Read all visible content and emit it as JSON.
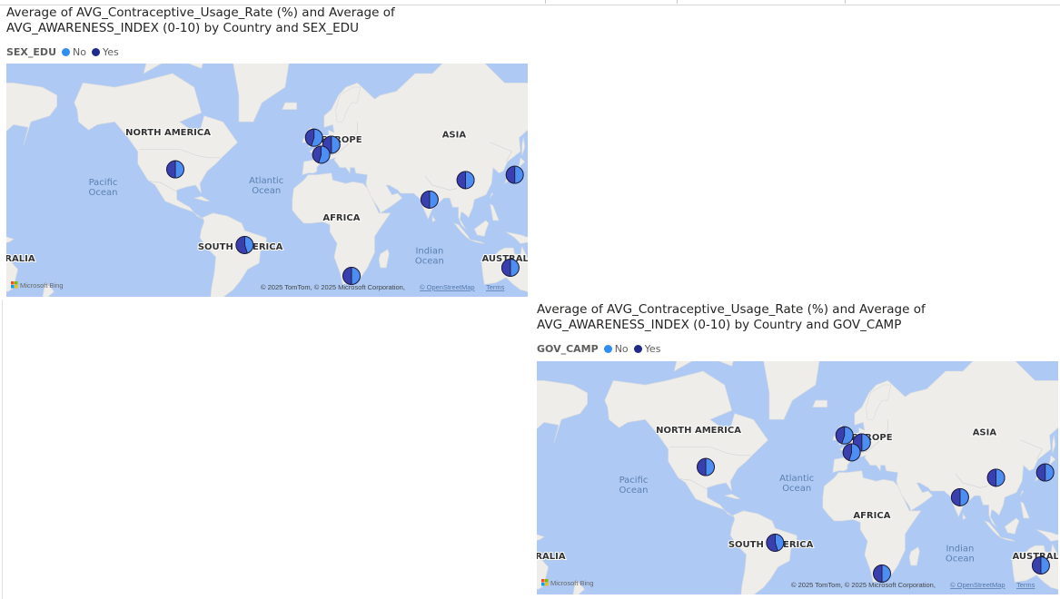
{
  "colors": {
    "no": "#4d8ef2",
    "yes": "#3a3fb0",
    "ocean": "#aecaf4",
    "land": "#eeedea"
  },
  "visuals": [
    {
      "title": "Average of AVG_Contraceptive_Usage_Rate (%) and Average of\nAVG_AWARENESS_INDEX (0-10) by Country and SEX_EDU",
      "legend_title": "SEX_EDU",
      "legend_items": [
        {
          "label": "No",
          "color": "#4d8ef2"
        },
        {
          "label": "Yes",
          "color": "#1f2a8c"
        }
      ],
      "map_labels": {
        "north_america": "NORTH AMERICA",
        "europe": "EUROPE",
        "asia": "ASIA",
        "africa": "AFRICA",
        "south_america": "SOUTH AMERICA",
        "australia_left": "RALIA",
        "australia": "AUSTRALIA",
        "pacific_left": "Pacific\nOcean",
        "atlantic": "Atlantic\nOcean",
        "indian": "Indian\nOcean",
        "pacific_right": "Pacific\nOcean"
      },
      "attribution": "© 2025 TomTom, © 2025 Microsoft Corporation,",
      "attribution_link": "© OpenStreetMap",
      "terms": "Terms",
      "bing": "Microsoft Bing",
      "pies": [
        {
          "country": "United States",
          "lon": -98,
          "lat": 39,
          "no": 0.5,
          "yes": 0.5
        },
        {
          "country": "United Kingdom",
          "lon": -2,
          "lat": 54,
          "no": 0.55,
          "yes": 0.45
        },
        {
          "country": "Germany",
          "lon": 10,
          "lat": 51,
          "no": 0.5,
          "yes": 0.5
        },
        {
          "country": "France",
          "lon": 3,
          "lat": 46.5,
          "no": 0.55,
          "yes": 0.45
        },
        {
          "country": "Brazil",
          "lon": -50,
          "lat": -10,
          "no": 0.45,
          "yes": 0.55
        },
        {
          "country": "South Africa",
          "lon": 24,
          "lat": -30,
          "no": 0.5,
          "yes": 0.5
        },
        {
          "country": "India",
          "lon": 78,
          "lat": 21,
          "no": 0.5,
          "yes": 0.5
        },
        {
          "country": "China",
          "lon": 103,
          "lat": 33,
          "no": 0.5,
          "yes": 0.5
        },
        {
          "country": "Japan",
          "lon": 137,
          "lat": 36,
          "no": 0.5,
          "yes": 0.5
        },
        {
          "country": "Australia",
          "lon": 134,
          "lat": -25,
          "no": 0.5,
          "yes": 0.5
        }
      ]
    },
    {
      "title": "Average of AVG_Contraceptive_Usage_Rate (%) and Average of\nAVG_AWARENESS_INDEX (0-10) by Country and GOV_CAMP",
      "legend_title": "GOV_CAMP",
      "legend_items": [
        {
          "label": "No",
          "color": "#4d8ef2"
        },
        {
          "label": "Yes",
          "color": "#1f2a8c"
        }
      ],
      "map_labels": {
        "north_america": "NORTH AMERICA",
        "europe": "EUROPE",
        "asia": "ASIA",
        "africa": "AFRICA",
        "south_america": "SOUTH AMERICA",
        "australia_left": "RALIA",
        "australia": "AUSTRALIA",
        "pacific_left": "Pacific\nOcean",
        "atlantic": "Atlantic\nOcean",
        "indian": "Indian\nOcean",
        "pacific_right": "Pacific\nOcean"
      },
      "attribution": "© 2025 TomTom, © 2025 Microsoft Corporation,",
      "attribution_link": "© OpenStreetMap",
      "terms": "Terms",
      "bing": "Microsoft Bing",
      "pies": [
        {
          "country": "United States",
          "lon": -98,
          "lat": 39,
          "no": 0.5,
          "yes": 0.5
        },
        {
          "country": "United Kingdom",
          "lon": -2,
          "lat": 54,
          "no": 0.55,
          "yes": 0.45
        },
        {
          "country": "Germany",
          "lon": 10,
          "lat": 51,
          "no": 0.5,
          "yes": 0.5
        },
        {
          "country": "France",
          "lon": 3,
          "lat": 46.5,
          "no": 0.55,
          "yes": 0.45
        },
        {
          "country": "Brazil",
          "lon": -50,
          "lat": -10,
          "no": 0.45,
          "yes": 0.55
        },
        {
          "country": "South Africa",
          "lon": 24,
          "lat": -30,
          "no": 0.5,
          "yes": 0.5
        },
        {
          "country": "India",
          "lon": 78,
          "lat": 21,
          "no": 0.5,
          "yes": 0.5
        },
        {
          "country": "China",
          "lon": 103,
          "lat": 33,
          "no": 0.5,
          "yes": 0.5
        },
        {
          "country": "Japan",
          "lon": 137,
          "lat": 36,
          "no": 0.5,
          "yes": 0.5
        },
        {
          "country": "Australia",
          "lon": 134,
          "lat": -25,
          "no": 0.5,
          "yes": 0.5
        }
      ]
    }
  ]
}
